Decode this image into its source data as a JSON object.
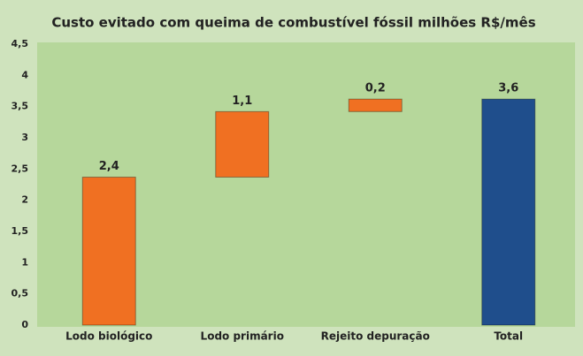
{
  "chart_data": {
    "type": "waterfall",
    "title": "Custo evitado com queima de combustível fóssil milhões R$/mês",
    "categories": [
      "Lodo biológico",
      "Lodo primário",
      "Rejeito depuração",
      "Total"
    ],
    "values": [
      2.37,
      1.05,
      0.2,
      3.62
    ],
    "value_labels": [
      "2,4",
      "1,1",
      "0,2",
      "3,6"
    ],
    "is_total": [
      false,
      false,
      false,
      true
    ],
    "color": "#f07022",
    "total_color": "#1f4e8c",
    "ylim": [
      0,
      4.5
    ],
    "yticks": [
      0,
      {
        "value": 0.5,
        "label": "0,5"
      },
      1,
      {
        "value": 1.5,
        "label": "1,5"
      },
      2,
      {
        "value": 2.5,
        "label": "2,5"
      },
      3,
      {
        "value": 3.5,
        "label": "3,5"
      },
      4,
      {
        "value": 4.5,
        "label": "4,5"
      }
    ]
  }
}
